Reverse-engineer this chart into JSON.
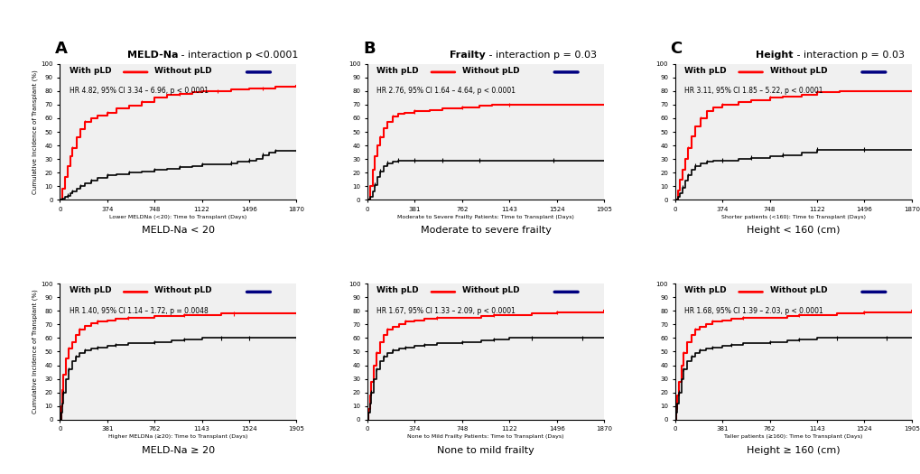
{
  "fig_width": 10.2,
  "fig_height": 5.25,
  "bg_color": "#ffffff",
  "panel_bg": "#f0f0f0",
  "col_titles": [
    "MELD-Na - interaction p <0.0001",
    "Frailty - interaction p = 0.03",
    "Height - interaction p = 0.03"
  ],
  "col_letters": [
    "A",
    "B",
    "C"
  ],
  "row_subtitles": [
    [
      "MELD-Na < 20",
      "Moderate to severe frailty",
      "Height < 160 (cm)"
    ],
    [
      "MELD-Na ≥ 20",
      "None to mild frailty",
      "Height ≥ 160 (cm)"
    ]
  ],
  "xlabels": [
    [
      "Lower MELDNa (<20): Time to Transplant (Days)",
      "Moderate to Severe Frailty Patients: Time to Transplant (Days)",
      "Shorter patients (<160): Time to Transplant (Days)"
    ],
    [
      "Higher MELDNa (≥20): Time to Transplant (Days)",
      "None to Mild Frailty Patients: Time to Transplant (Days)",
      "Taller patients (≥160): Time to Transplant (Days)"
    ]
  ],
  "xticks": [
    [
      [
        0,
        374,
        748,
        1122,
        1496,
        1870
      ],
      [
        0,
        381,
        762,
        1143,
        1524,
        1905
      ],
      [
        0,
        374,
        748,
        1122,
        1496,
        1870
      ]
    ],
    [
      [
        0,
        381,
        762,
        1143,
        1524,
        1905
      ],
      [
        0,
        374,
        748,
        1122,
        1496,
        1870
      ],
      [
        0,
        381,
        762,
        1143,
        1524,
        1905
      ]
    ]
  ],
  "xlims": [
    [
      [
        0,
        1870
      ],
      [
        0,
        1905
      ],
      [
        0,
        1870
      ]
    ],
    [
      [
        0,
        1905
      ],
      [
        0,
        1870
      ],
      [
        0,
        1905
      ]
    ]
  ],
  "hr_texts": [
    [
      "HR 4.82, 95% CI 3.34 – 6.96, p < 0.0001",
      "HR 2.76, 95% CI 1.64 – 4.64, p < 0.0001",
      "HR 3.11, 95% CI 1.85 – 5.22, p < 0.0001"
    ],
    [
      "HR 1.40, 95% CI 1.14 – 1.72, p = 0.0048",
      "HR 1.67, 95% CI 1.33 – 2.09, p < 0.0001",
      "HR 1.68, 95% CI 1.39 – 2.03, p < 0.0001"
    ]
  ],
  "red_curves": {
    "00": {
      "x": [
        0,
        20,
        40,
        60,
        80,
        100,
        130,
        160,
        200,
        250,
        300,
        374,
        450,
        550,
        650,
        748,
        850,
        950,
        1050,
        1122,
        1250,
        1350,
        1496,
        1600,
        1700,
        1870
      ],
      "y": [
        0,
        8,
        17,
        25,
        32,
        38,
        46,
        52,
        57,
        60,
        62,
        64,
        67,
        69,
        72,
        75,
        77,
        78,
        79,
        80,
        80,
        81,
        82,
        82,
        83,
        84
      ]
    },
    "01": {
      "x": [
        0,
        20,
        40,
        60,
        80,
        100,
        130,
        160,
        200,
        250,
        300,
        381,
        500,
        600,
        762,
        900,
        1000,
        1143,
        1500,
        1905
      ],
      "y": [
        0,
        10,
        22,
        32,
        40,
        46,
        53,
        57,
        61,
        63,
        64,
        65,
        66,
        67,
        68,
        69,
        70,
        70,
        70,
        70
      ]
    },
    "02": {
      "x": [
        0,
        20,
        40,
        60,
        80,
        100,
        130,
        160,
        200,
        250,
        300,
        374,
        500,
        600,
        748,
        850,
        1000,
        1122,
        1300,
        1496,
        1870
      ],
      "y": [
        0,
        7,
        15,
        22,
        30,
        38,
        47,
        54,
        60,
        65,
        68,
        70,
        72,
        73,
        75,
        76,
        77,
        79,
        80,
        80,
        80
      ]
    },
    "10": {
      "x": [
        0,
        10,
        20,
        30,
        50,
        70,
        100,
        130,
        160,
        200,
        250,
        300,
        381,
        450,
        550,
        762,
        900,
        1000,
        1143,
        1300,
        1400,
        1524,
        1700,
        1905
      ],
      "y": [
        0,
        10,
        22,
        33,
        45,
        52,
        57,
        62,
        66,
        69,
        71,
        72,
        73,
        74,
        75,
        76,
        76,
        77,
        77,
        78,
        78,
        78,
        78,
        78
      ]
    },
    "11": {
      "x": [
        0,
        10,
        20,
        30,
        50,
        70,
        100,
        130,
        160,
        200,
        250,
        300,
        374,
        450,
        550,
        748,
        900,
        1000,
        1122,
        1300,
        1496,
        1700,
        1870
      ],
      "y": [
        0,
        8,
        18,
        28,
        40,
        49,
        57,
        62,
        66,
        68,
        70,
        72,
        73,
        74,
        75,
        75,
        76,
        77,
        77,
        78,
        79,
        79,
        80
      ]
    },
    "12": {
      "x": [
        0,
        10,
        20,
        30,
        50,
        70,
        100,
        130,
        160,
        200,
        250,
        300,
        381,
        450,
        550,
        762,
        900,
        1000,
        1143,
        1300,
        1524,
        1700,
        1905
      ],
      "y": [
        0,
        8,
        18,
        28,
        40,
        49,
        57,
        62,
        66,
        68,
        70,
        72,
        73,
        74,
        75,
        75,
        76,
        77,
        77,
        78,
        79,
        79,
        80
      ]
    }
  },
  "black_curves": {
    "00": {
      "x": [
        0,
        20,
        40,
        60,
        80,
        100,
        130,
        160,
        200,
        250,
        300,
        374,
        450,
        550,
        650,
        748,
        850,
        950,
        1050,
        1122,
        1250,
        1350,
        1400,
        1496,
        1550,
        1600,
        1650,
        1700,
        1800,
        1870
      ],
      "y": [
        0,
        1,
        2,
        3,
        5,
        6,
        8,
        10,
        12,
        14,
        16,
        18,
        19,
        20,
        21,
        22,
        23,
        24,
        25,
        26,
        26,
        27,
        28,
        29,
        30,
        33,
        35,
        36,
        36,
        36
      ]
    },
    "01": {
      "x": [
        0,
        20,
        40,
        60,
        80,
        100,
        130,
        160,
        200,
        250,
        300,
        381,
        500,
        600,
        762,
        900,
        1143,
        1500,
        1905
      ],
      "y": [
        0,
        2,
        6,
        11,
        17,
        21,
        25,
        27,
        28,
        29,
        29,
        29,
        29,
        29,
        29,
        29,
        29,
        29,
        29
      ]
    },
    "02": {
      "x": [
        0,
        20,
        40,
        60,
        80,
        100,
        130,
        160,
        200,
        250,
        300,
        374,
        500,
        600,
        748,
        850,
        1000,
        1122,
        1300,
        1496,
        1870
      ],
      "y": [
        0,
        2,
        5,
        9,
        14,
        18,
        22,
        25,
        27,
        28,
        29,
        29,
        30,
        31,
        32,
        33,
        35,
        37,
        37,
        37,
        37
      ]
    },
    "10": {
      "x": [
        0,
        10,
        20,
        30,
        50,
        70,
        100,
        130,
        160,
        200,
        250,
        300,
        381,
        450,
        550,
        762,
        900,
        1000,
        1143,
        1300,
        1400,
        1524,
        1700,
        1905
      ],
      "y": [
        0,
        5,
        12,
        20,
        30,
        37,
        43,
        46,
        49,
        51,
        52,
        53,
        54,
        55,
        56,
        57,
        58,
        59,
        60,
        60,
        60,
        60,
        60,
        60
      ]
    },
    "11": {
      "x": [
        0,
        10,
        20,
        30,
        50,
        70,
        100,
        130,
        160,
        200,
        250,
        300,
        374,
        450,
        550,
        748,
        900,
        1000,
        1122,
        1300,
        1496,
        1700,
        1870
      ],
      "y": [
        0,
        5,
        12,
        20,
        30,
        37,
        43,
        46,
        49,
        51,
        52,
        53,
        54,
        55,
        56,
        57,
        58,
        59,
        60,
        60,
        60,
        60,
        60
      ]
    },
    "12": {
      "x": [
        0,
        10,
        20,
        30,
        50,
        70,
        100,
        130,
        160,
        200,
        250,
        300,
        381,
        450,
        550,
        762,
        900,
        1000,
        1143,
        1300,
        1524,
        1700,
        1905
      ],
      "y": [
        0,
        5,
        12,
        20,
        30,
        37,
        43,
        46,
        49,
        51,
        52,
        53,
        54,
        55,
        56,
        57,
        58,
        59,
        60,
        60,
        60,
        60,
        60
      ]
    }
  },
  "red_color": "#ff0000",
  "black_color": "#000000",
  "navy_color": "#000080",
  "ylabel": "Cumulative Incidence of Transplant (%)",
  "yticks": [
    0,
    10,
    20,
    30,
    40,
    50,
    60,
    70,
    80,
    90,
    100
  ],
  "ylim": [
    0,
    100
  ]
}
